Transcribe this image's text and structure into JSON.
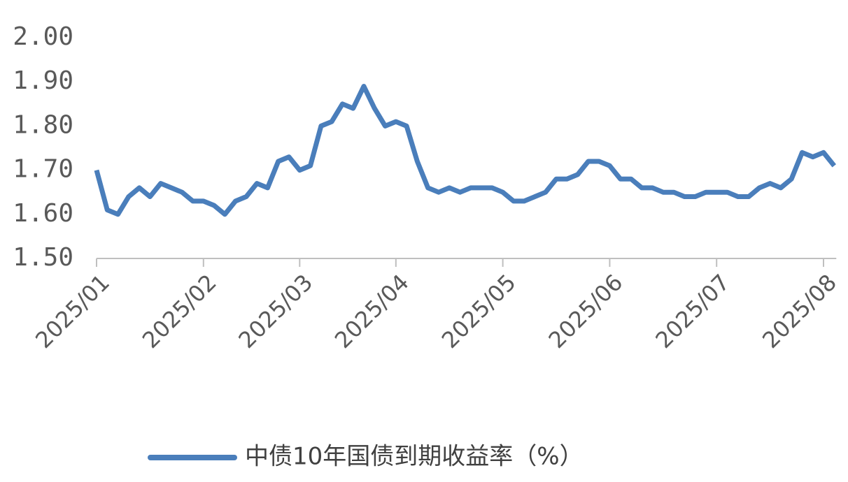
{
  "chart_data": {
    "type": "line",
    "categories": [
      "2025/01",
      null,
      null,
      null,
      null,
      null,
      null,
      null,
      null,
      null,
      "2025/02",
      null,
      null,
      null,
      null,
      null,
      null,
      null,
      null,
      "2025/03",
      null,
      null,
      null,
      null,
      null,
      null,
      null,
      null,
      "2025/04",
      null,
      null,
      null,
      null,
      null,
      null,
      null,
      null,
      null,
      "2025/05",
      null,
      null,
      null,
      null,
      null,
      null,
      null,
      null,
      null,
      "2025/06",
      null,
      null,
      null,
      null,
      null,
      null,
      null,
      null,
      null,
      "2025/07",
      null,
      null,
      null,
      null,
      null,
      null,
      null,
      null,
      null,
      "2025/08",
      null
    ],
    "series": [
      {
        "name": "中债10年国债到期收益率（%）",
        "color": "#4a7ebb",
        "values": [
          1.7,
          1.61,
          1.6,
          1.64,
          1.66,
          1.64,
          1.67,
          1.66,
          1.65,
          1.63,
          1.63,
          1.62,
          1.6,
          1.63,
          1.64,
          1.67,
          1.66,
          1.72,
          1.73,
          1.7,
          1.71,
          1.8,
          1.81,
          1.85,
          1.84,
          1.89,
          1.84,
          1.8,
          1.81,
          1.8,
          1.72,
          1.66,
          1.65,
          1.66,
          1.65,
          1.66,
          1.66,
          1.66,
          1.65,
          1.63,
          1.63,
          1.64,
          1.65,
          1.68,
          1.68,
          1.69,
          1.72,
          1.72,
          1.71,
          1.68,
          1.68,
          1.66,
          1.66,
          1.65,
          1.65,
          1.64,
          1.64,
          1.65,
          1.65,
          1.65,
          1.64,
          1.64,
          1.66,
          1.67,
          1.66,
          1.68,
          1.74,
          1.73,
          1.74,
          1.71
        ]
      }
    ],
    "ylim": [
      1.5,
      2.0
    ],
    "yticks": [
      {
        "value": 1.5,
        "label": "1.50"
      },
      {
        "value": 1.6,
        "label": "1.60"
      },
      {
        "value": 1.7,
        "label": "1.70"
      },
      {
        "value": 1.8,
        "label": "1.80"
      },
      {
        "value": 1.9,
        "label": "1.90"
      },
      {
        "value": 2.0,
        "label": "2.00"
      }
    ],
    "grid": false,
    "legend": "bottom"
  }
}
